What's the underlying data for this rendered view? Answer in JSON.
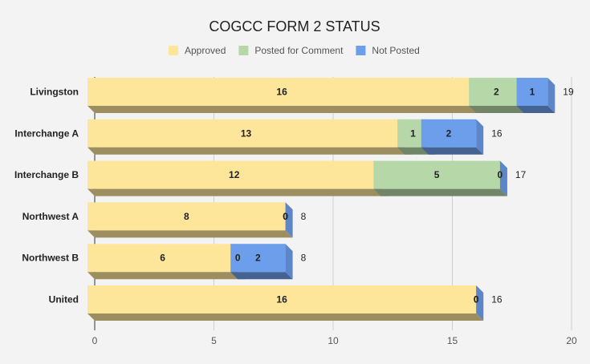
{
  "chart_data": {
    "type": "bar",
    "orientation": "horizontal",
    "stacked": true,
    "style": "3d",
    "title": "COGCC FORM 2 STATUS",
    "xlabel": "",
    "ylabel": "",
    "xlim": [
      0,
      20
    ],
    "x_ticks": [
      "0",
      "5",
      "10",
      "15",
      "20"
    ],
    "grid": true,
    "legend_position": "top",
    "categories": [
      "Livingston",
      "Interchange A",
      "Interchange B",
      "Northwest A",
      "Northwest B",
      "United"
    ],
    "series": [
      {
        "name": "Approved",
        "color": "#fde59a",
        "values": [
          16,
          13,
          12,
          8,
          6,
          16
        ]
      },
      {
        "name": "Posted for Comment",
        "color": "#b6d7a8",
        "values": [
          2,
          1,
          5,
          0,
          0,
          0
        ]
      },
      {
        "name": "Not Posted",
        "color": "#6d9eeb",
        "values": [
          1,
          2,
          0,
          0,
          2,
          0
        ]
      }
    ],
    "totals": [
      19,
      16,
      17,
      8,
      8,
      16
    ]
  }
}
